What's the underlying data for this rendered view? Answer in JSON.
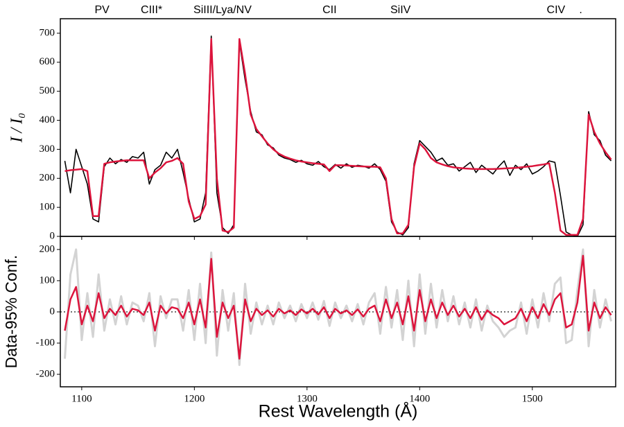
{
  "chart_data": [
    {
      "type": "line",
      "ylabel": "I / I₀",
      "annotations": [
        {
          "text": "PV",
          "x": 1118
        },
        {
          "text": "CIII*",
          "x": 1162
        },
        {
          "text": "SiIII/Lya/NV",
          "x": 1225
        },
        {
          "text": "CII",
          "x": 1320
        },
        {
          "text": "SiIV",
          "x": 1383
        },
        {
          "text": "CIV",
          "x": 1521
        },
        {
          "text": ".",
          "x": 1543
        }
      ],
      "xlim": [
        1081,
        1574
      ],
      "ylim": [
        0,
        750
      ],
      "yticks": [
        0,
        100,
        200,
        300,
        400,
        500,
        600,
        700
      ],
      "x": [
        1085,
        1090,
        1095,
        1100,
        1105,
        1110,
        1115,
        1120,
        1125,
        1130,
        1135,
        1140,
        1145,
        1150,
        1155,
        1160,
        1165,
        1170,
        1175,
        1180,
        1185,
        1190,
        1195,
        1200,
        1205,
        1210,
        1215,
        1220,
        1225,
        1230,
        1235,
        1240,
        1245,
        1250,
        1255,
        1260,
        1265,
        1270,
        1275,
        1280,
        1285,
        1290,
        1295,
        1300,
        1305,
        1310,
        1315,
        1320,
        1325,
        1330,
        1335,
        1340,
        1345,
        1350,
        1355,
        1360,
        1365,
        1370,
        1375,
        1380,
        1385,
        1390,
        1395,
        1400,
        1405,
        1410,
        1415,
        1420,
        1425,
        1430,
        1435,
        1440,
        1445,
        1450,
        1455,
        1460,
        1465,
        1470,
        1475,
        1480,
        1485,
        1490,
        1495,
        1500,
        1505,
        1510,
        1515,
        1520,
        1525,
        1530,
        1535,
        1540,
        1545,
        1550,
        1555,
        1560,
        1565,
        1570
      ],
      "series": [
        {
          "color": "#000000",
          "values": [
            260,
            150,
            300,
            240,
            180,
            60,
            50,
            240,
            270,
            250,
            265,
            255,
            275,
            270,
            290,
            180,
            230,
            245,
            290,
            270,
            300,
            220,
            130,
            50,
            60,
            150,
            690,
            150,
            30,
            10,
            40,
            670,
            540,
            430,
            360,
            350,
            315,
            305,
            280,
            270,
            265,
            255,
            262,
            250,
            245,
            258,
            240,
            230,
            248,
            235,
            250,
            238,
            245,
            242,
            235,
            250,
            230,
            190,
            50,
            15,
            5,
            30,
            250,
            330,
            310,
            290,
            260,
            270,
            245,
            250,
            225,
            240,
            255,
            220,
            245,
            230,
            215,
            240,
            260,
            210,
            245,
            230,
            250,
            215,
            225,
            240,
            260,
            255,
            140,
            15,
            5,
            0,
            40,
            430,
            350,
            330,
            280,
            260
          ]
        },
        {
          "color": "#dc143c",
          "values": [
            225,
            228,
            230,
            232,
            225,
            70,
            70,
            250,
            255,
            258,
            260,
            262,
            262,
            262,
            262,
            200,
            220,
            235,
            255,
            260,
            270,
            250,
            120,
            60,
            70,
            110,
            680,
            200,
            20,
            15,
            30,
            680,
            560,
            420,
            370,
            345,
            320,
            300,
            285,
            275,
            268,
            262,
            258,
            255,
            252,
            250,
            248,
            225,
            245,
            245,
            244,
            243,
            242,
            241,
            240,
            240,
            238,
            200,
            60,
            10,
            10,
            40,
            240,
            320,
            300,
            270,
            255,
            248,
            242,
            238,
            236,
            234,
            233,
            232,
            232,
            232,
            232,
            233,
            234,
            235,
            236,
            238,
            240,
            242,
            245,
            248,
            252,
            150,
            20,
            5,
            5,
            5,
            60,
            420,
            360,
            320,
            290,
            265
          ]
        }
      ]
    },
    {
      "type": "line",
      "ylabel": "Data-95% Conf.",
      "xlabel": "Rest Wavelength (Å)",
      "xlim": [
        1081,
        1574
      ],
      "xticks": [
        1100,
        1200,
        1300,
        1400,
        1500
      ],
      "ylim": [
        -240,
        242
      ],
      "yticks": [
        -200,
        -100,
        0,
        100,
        200
      ],
      "x": [
        1085,
        1090,
        1095,
        1100,
        1105,
        1110,
        1115,
        1120,
        1125,
        1130,
        1135,
        1140,
        1145,
        1150,
        1155,
        1160,
        1165,
        1170,
        1175,
        1180,
        1185,
        1190,
        1195,
        1200,
        1205,
        1210,
        1215,
        1220,
        1225,
        1230,
        1235,
        1240,
        1245,
        1250,
        1255,
        1260,
        1265,
        1270,
        1275,
        1280,
        1285,
        1290,
        1295,
        1300,
        1305,
        1310,
        1315,
        1320,
        1325,
        1330,
        1335,
        1340,
        1345,
        1350,
        1355,
        1360,
        1365,
        1370,
        1375,
        1380,
        1385,
        1390,
        1395,
        1400,
        1405,
        1410,
        1415,
        1420,
        1425,
        1430,
        1435,
        1440,
        1445,
        1450,
        1455,
        1460,
        1465,
        1470,
        1475,
        1480,
        1485,
        1490,
        1495,
        1500,
        1505,
        1510,
        1515,
        1520,
        1525,
        1530,
        1535,
        1540,
        1545,
        1550,
        1555,
        1560,
        1565,
        1570
      ],
      "series": [
        {
          "color": "#d3d3d3",
          "values": [
            -150,
            120,
            200,
            -90,
            60,
            -80,
            120,
            -60,
            40,
            -40,
            50,
            -40,
            30,
            20,
            -30,
            60,
            -110,
            50,
            -20,
            40,
            40,
            -60,
            70,
            -90,
            90,
            -100,
            190,
            -140,
            70,
            -60,
            60,
            -170,
            90,
            -70,
            30,
            -40,
            20,
            -40,
            30,
            -20,
            20,
            -30,
            25,
            -20,
            30,
            -25,
            35,
            -45,
            30,
            -20,
            20,
            -30,
            25,
            -40,
            30,
            60,
            -70,
            80,
            -50,
            70,
            -90,
            100,
            -110,
            120,
            -70,
            90,
            -50,
            70,
            -30,
            50,
            -40,
            30,
            -50,
            40,
            -60,
            20,
            -30,
            -50,
            -80,
            -60,
            -50,
            30,
            -70,
            40,
            -50,
            60,
            -30,
            90,
            110,
            -100,
            -90,
            70,
            200,
            -110,
            70,
            -50,
            40,
            -30
          ]
        },
        {
          "color": "#dc143c",
          "values": [
            -60,
            40,
            80,
            -40,
            20,
            -30,
            60,
            -20,
            10,
            -10,
            20,
            -15,
            10,
            5,
            -10,
            30,
            -60,
            20,
            -5,
            15,
            10,
            -20,
            30,
            -40,
            40,
            -50,
            170,
            -80,
            30,
            -20,
            20,
            -150,
            40,
            -30,
            10,
            -10,
            5,
            -15,
            10,
            -5,
            5,
            -10,
            8,
            -5,
            10,
            -8,
            15,
            -20,
            10,
            -5,
            5,
            -10,
            8,
            -15,
            10,
            20,
            -30,
            40,
            -20,
            30,
            -40,
            50,
            -60,
            70,
            -30,
            40,
            -20,
            30,
            -10,
            20,
            -15,
            10,
            -20,
            15,
            -25,
            5,
            -10,
            -20,
            -40,
            -30,
            -20,
            10,
            -30,
            15,
            -20,
            25,
            -10,
            40,
            60,
            -50,
            -40,
            30,
            180,
            -60,
            30,
            -20,
            15,
            -10
          ]
        }
      ]
    }
  ]
}
